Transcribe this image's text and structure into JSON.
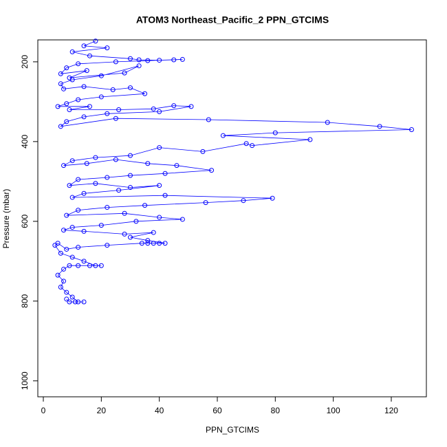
{
  "chart_data": {
    "type": "line",
    "markers": true,
    "title": "ATOM3 Northeast_Pacific_2 PPN_GTCIMS",
    "xlabel": "PPN_GTCIMS",
    "ylabel": "Pressure (mbar)",
    "color": "#0000ff",
    "y_reversed": true,
    "xlim": [
      -1.9,
      132.1
    ],
    "xticks": [
      0,
      20,
      40,
      60,
      80,
      100,
      120
    ],
    "ylim": [
      1040,
      145
    ],
    "yticks": [
      200,
      400,
      600,
      800,
      1000
    ],
    "x": [
      18,
      14,
      22,
      10,
      16,
      30,
      33,
      40,
      45,
      48,
      36,
      25,
      12,
      8,
      6,
      15,
      9,
      28,
      33,
      20,
      10,
      6,
      7,
      14,
      24,
      30,
      35,
      20,
      12,
      8,
      5,
      16,
      9,
      26,
      38,
      45,
      51,
      40,
      22,
      14,
      8,
      6,
      25,
      57,
      98,
      116,
      127,
      80,
      62,
      92,
      72,
      70,
      55,
      40,
      30,
      18,
      10,
      7,
      15,
      25,
      36,
      46,
      58,
      42,
      30,
      22,
      12,
      9,
      18,
      30,
      40,
      26,
      14,
      10,
      42,
      79,
      69,
      56,
      35,
      22,
      12,
      8,
      28,
      40,
      48,
      32,
      20,
      10,
      7,
      14,
      28,
      38,
      30,
      36,
      42,
      40,
      38,
      36,
      34,
      22,
      12,
      8,
      5,
      4,
      6,
      10,
      14,
      18,
      20,
      16,
      12,
      9,
      7,
      5,
      7,
      6,
      8,
      10,
      12,
      14,
      11,
      9,
      8
    ],
    "values": [
      148,
      160,
      165,
      175,
      185,
      192,
      195,
      196,
      195,
      194,
      197,
      200,
      205,
      215,
      230,
      222,
      240,
      228,
      210,
      235,
      245,
      255,
      268,
      262,
      270,
      265,
      280,
      288,
      295,
      305,
      312,
      312,
      320,
      320,
      318,
      310,
      312,
      325,
      330,
      338,
      350,
      362,
      342,
      345,
      352,
      362,
      370,
      378,
      385,
      395,
      410,
      405,
      425,
      415,
      435,
      440,
      448,
      460,
      455,
      445,
      455,
      460,
      472,
      480,
      485,
      490,
      495,
      510,
      505,
      515,
      510,
      522,
      530,
      540,
      535,
      542,
      548,
      553,
      560,
      565,
      572,
      585,
      580,
      590,
      595,
      600,
      610,
      615,
      622,
      625,
      632,
      628,
      640,
      648,
      655,
      655,
      655,
      655,
      655,
      660,
      665,
      670,
      655,
      660,
      680,
      690,
      700,
      711,
      711,
      711,
      711,
      711,
      720,
      735,
      750,
      765,
      778,
      790,
      802,
      802,
      802,
      802,
      795
    ]
  }
}
